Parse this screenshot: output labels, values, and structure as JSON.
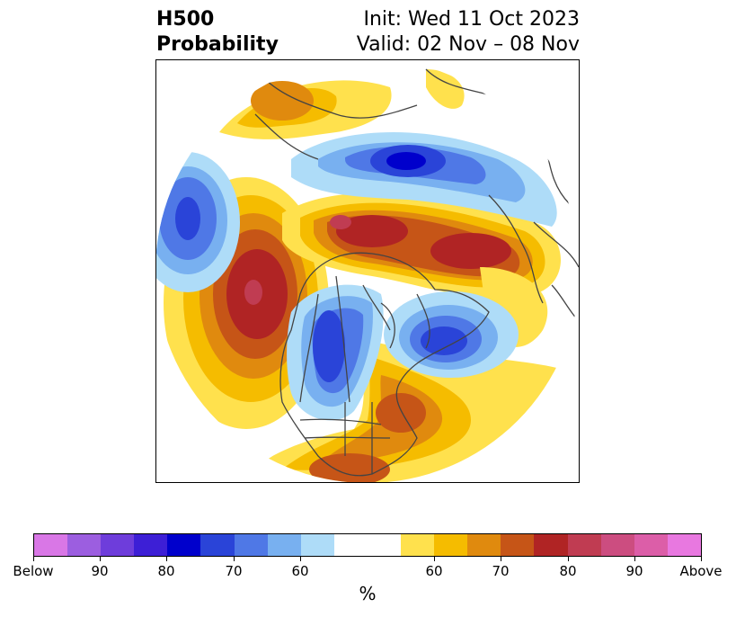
{
  "title": {
    "left_line1": "H500",
    "left_line2": "Probability",
    "right_line1": "Init: Wed 11 Oct 2023",
    "right_line2": "Valid: 02 Nov – 08 Nov"
  },
  "colorbar": {
    "unit_label": "%",
    "ticks": [
      "Below",
      "90",
      "80",
      "70",
      "60",
      "60",
      "70",
      "80",
      "90",
      "Above"
    ],
    "below_colors": [
      "#d977e6",
      "#9c5ee0",
      "#6e3ddb",
      "#3d1fd6",
      "#0000cc",
      "#2a44d8",
      "#4f78e6",
      "#78b0f0",
      "#aedcf8"
    ],
    "neutral_color": "#ffffff",
    "above_colors": [
      "#ffe14d",
      "#f5bc00",
      "#e08a0e",
      "#c65517",
      "#b02424",
      "#c03c52",
      "#cc4d80",
      "#dc5ea8",
      "#e878e0"
    ]
  },
  "map": {
    "projection": "north-polar-stereographic",
    "region": "North America and Northern Hemisphere"
  }
}
